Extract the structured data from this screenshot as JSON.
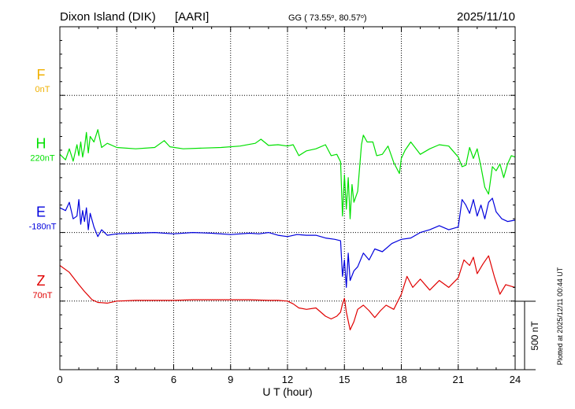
{
  "header": {
    "station": "Dixon Island (DIK)",
    "institute": "[AARI]",
    "coords_prefix": "GG ( 73.55",
    "coords_mid": ", 80.57",
    "coords_suffix": ")",
    "date": "2025/11/10"
  },
  "footer": {
    "plotted": "Plotted at 2025/12/11 00:44 UT",
    "scale_label": "500 nT"
  },
  "colors": {
    "F": "#f0b000",
    "H": "#00e000",
    "E": "#0000dd",
    "Z": "#e00000",
    "grid": "#000000"
  },
  "chart_data": {
    "type": "line",
    "xlabel": "U T (hour)",
    "xlim": [
      0,
      24
    ],
    "xticks": [
      "0",
      "3",
      "6",
      "9",
      "12",
      "15",
      "18",
      "21",
      "24"
    ],
    "scale_nT_per_major_division": 500,
    "channels": [
      {
        "name": "F",
        "offset_label": "0nT",
        "baseline_division": 1,
        "values": []
      },
      {
        "name": "H",
        "offset_label": "220nT",
        "baseline_division": 2,
        "x": [
          0,
          0.3,
          0.5,
          0.7,
          0.9,
          1.0,
          1.1,
          1.2,
          1.3,
          1.4,
          1.5,
          1.6,
          1.8,
          2.0,
          2.2,
          2.5,
          3.0,
          4.0,
          5.0,
          5.5,
          5.8,
          6.5,
          7.5,
          8.5,
          9.5,
          10.3,
          10.6,
          11.0,
          11.5,
          12.0,
          12.3,
          12.6,
          13.0,
          13.5,
          14.0,
          14.3,
          14.6,
          14.8,
          14.9,
          15.0,
          15.1,
          15.2,
          15.3,
          15.4,
          15.5,
          15.7,
          15.9,
          16.0,
          16.2,
          16.5,
          16.7,
          17.0,
          17.3,
          17.6,
          17.9,
          18.0,
          18.2,
          18.5,
          19.0,
          19.5,
          20.0,
          20.5,
          21.0,
          21.2,
          21.4,
          21.6,
          21.8,
          22.0,
          22.2,
          22.4,
          22.6,
          22.8,
          23.0,
          23.2,
          23.4,
          23.6,
          23.8,
          24.0
        ],
        "y": [
          70,
          30,
          110,
          20,
          140,
          60,
          160,
          50,
          120,
          230,
          80,
          200,
          160,
          250,
          120,
          150,
          120,
          110,
          120,
          170,
          125,
          110,
          115,
          120,
          130,
          150,
          180,
          135,
          140,
          130,
          140,
          60,
          95,
          110,
          140,
          60,
          70,
          15,
          -380,
          -80,
          -330,
          -100,
          -400,
          -150,
          -280,
          -200,
          140,
          210,
          160,
          160,
          60,
          70,
          130,
          10,
          -70,
          40,
          100,
          160,
          70,
          110,
          140,
          130,
          50,
          -20,
          -10,
          120,
          40,
          110,
          -20,
          -170,
          -220,
          -20,
          -50,
          0,
          -100,
          0,
          60,
          50
        ]
      },
      {
        "name": "E",
        "offset_label": "-180nT",
        "baseline_division": 3,
        "x": [
          0,
          0.3,
          0.5,
          0.7,
          0.9,
          1.0,
          1.1,
          1.2,
          1.3,
          1.4,
          1.5,
          1.6,
          1.8,
          2.0,
          2.2,
          2.5,
          3.0,
          4.0,
          5.0,
          6.0,
          7.0,
          8.0,
          9.0,
          10.0,
          10.5,
          11.0,
          11.5,
          12.0,
          12.5,
          13.0,
          13.5,
          14.0,
          14.5,
          14.8,
          14.9,
          15.0,
          15.1,
          15.2,
          15.3,
          15.5,
          15.7,
          16.0,
          16.3,
          16.6,
          17.0,
          17.5,
          18.0,
          18.5,
          19.0,
          19.5,
          20.0,
          20.5,
          21.0,
          21.2,
          21.4,
          21.6,
          21.8,
          22.0,
          22.2,
          22.4,
          22.6,
          22.8,
          23.0,
          23.3,
          23.6,
          24.0
        ],
        "y": [
          180,
          160,
          220,
          100,
          120,
          240,
          60,
          160,
          80,
          180,
          20,
          140,
          40,
          -30,
          20,
          -20,
          -10,
          -5,
          0,
          -10,
          0,
          -5,
          -15,
          -5,
          -10,
          0,
          -20,
          -30,
          -15,
          -20,
          -20,
          -40,
          -50,
          -60,
          -320,
          -200,
          -400,
          -150,
          -350,
          -280,
          -250,
          -150,
          -200,
          -120,
          -140,
          -80,
          -50,
          -40,
          0,
          20,
          50,
          20,
          40,
          240,
          200,
          140,
          240,
          120,
          200,
          100,
          220,
          250,
          150,
          100,
          80,
          90
        ]
      },
      {
        "name": "Z",
        "offset_label": "70nT",
        "baseline_division": 4,
        "x": [
          0,
          0.5,
          1.0,
          1.3,
          1.5,
          1.7,
          2.0,
          2.5,
          3.0,
          4.0,
          5.0,
          6.0,
          7.0,
          8.0,
          9.0,
          10.0,
          11.0,
          11.5,
          12.0,
          12.3,
          12.6,
          13.0,
          13.5,
          14.0,
          14.3,
          14.6,
          14.8,
          14.9,
          15.0,
          15.1,
          15.3,
          15.5,
          15.7,
          16.0,
          16.3,
          16.6,
          16.9,
          17.2,
          17.6,
          18.0,
          18.3,
          18.6,
          19.0,
          19.5,
          20.0,
          20.5,
          21.0,
          21.3,
          21.6,
          21.8,
          22.0,
          22.3,
          22.6,
          22.9,
          23.2,
          23.5,
          24.0
        ],
        "y": [
          260,
          210,
          120,
          70,
          40,
          10,
          -10,
          -15,
          0,
          5,
          5,
          5,
          10,
          10,
          10,
          10,
          5,
          5,
          0,
          -20,
          -50,
          -60,
          -50,
          -110,
          -130,
          -110,
          -80,
          -20,
          20,
          -80,
          -210,
          -150,
          -60,
          -30,
          -70,
          -120,
          -70,
          -30,
          -60,
          50,
          180,
          100,
          160,
          80,
          150,
          100,
          170,
          300,
          260,
          320,
          200,
          270,
          330,
          180,
          50,
          120,
          100
        ]
      }
    ]
  }
}
